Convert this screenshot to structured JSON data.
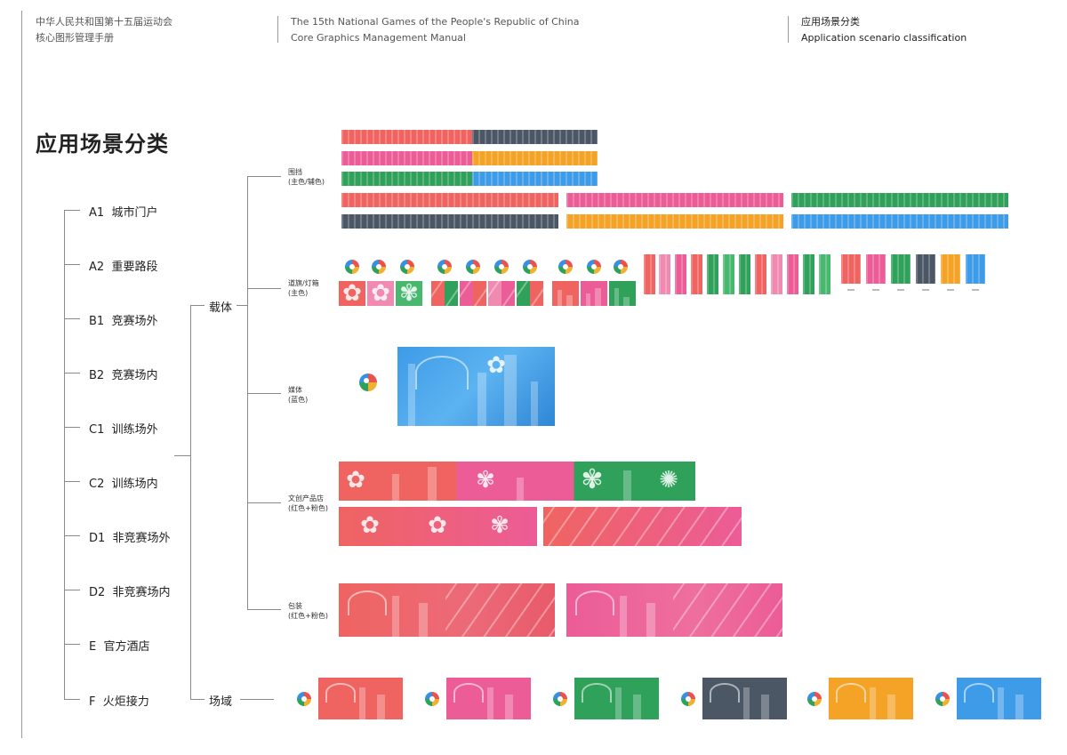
{
  "header": {
    "left_line1": "中华人民共和国第十五届运动会",
    "left_line2": "核心图形管理手册",
    "mid_line1": "The 15th National Games of the People's Republic of China",
    "mid_line2": "Core Graphics Management Manual",
    "right_line1": "应用场景分类",
    "right_line2": "Application scenario classification"
  },
  "page_title": "应用场景分类",
  "scenarios": [
    {
      "code": "A1",
      "label": "城市门户"
    },
    {
      "code": "A2",
      "label": "重要路段"
    },
    {
      "code": "B1",
      "label": "竞赛场外"
    },
    {
      "code": "B2",
      "label": "竞赛场内"
    },
    {
      "code": "C1",
      "label": "训练场外"
    },
    {
      "code": "C2",
      "label": "训练场内"
    },
    {
      "code": "D1",
      "label": "非竞赛场外"
    },
    {
      "code": "D2",
      "label": "非竞赛场内"
    },
    {
      "code": "E",
      "label": "官方酒店"
    },
    {
      "code": "F",
      "label": "火炬接力"
    }
  ],
  "nodes": {
    "carrier": "载体",
    "venue": "场域"
  },
  "categories": [
    {
      "name": "围挡",
      "note": "(主色/辅色)"
    },
    {
      "name": "道旗/灯箱",
      "note": "(主色)"
    },
    {
      "name": "媒体",
      "note": "(蓝色)"
    },
    {
      "name": "文创产品店",
      "note": "(红色+粉色)"
    },
    {
      "name": "包装",
      "note": "(红色+粉色)"
    }
  ],
  "colors": {
    "red": "#ef6461",
    "pink": "#ec5c97",
    "green": "#2fa15a",
    "gray": "#4c5766",
    "orange": "#f4a326",
    "blue": "#3d9be8",
    "line": "#8a8a8a"
  }
}
